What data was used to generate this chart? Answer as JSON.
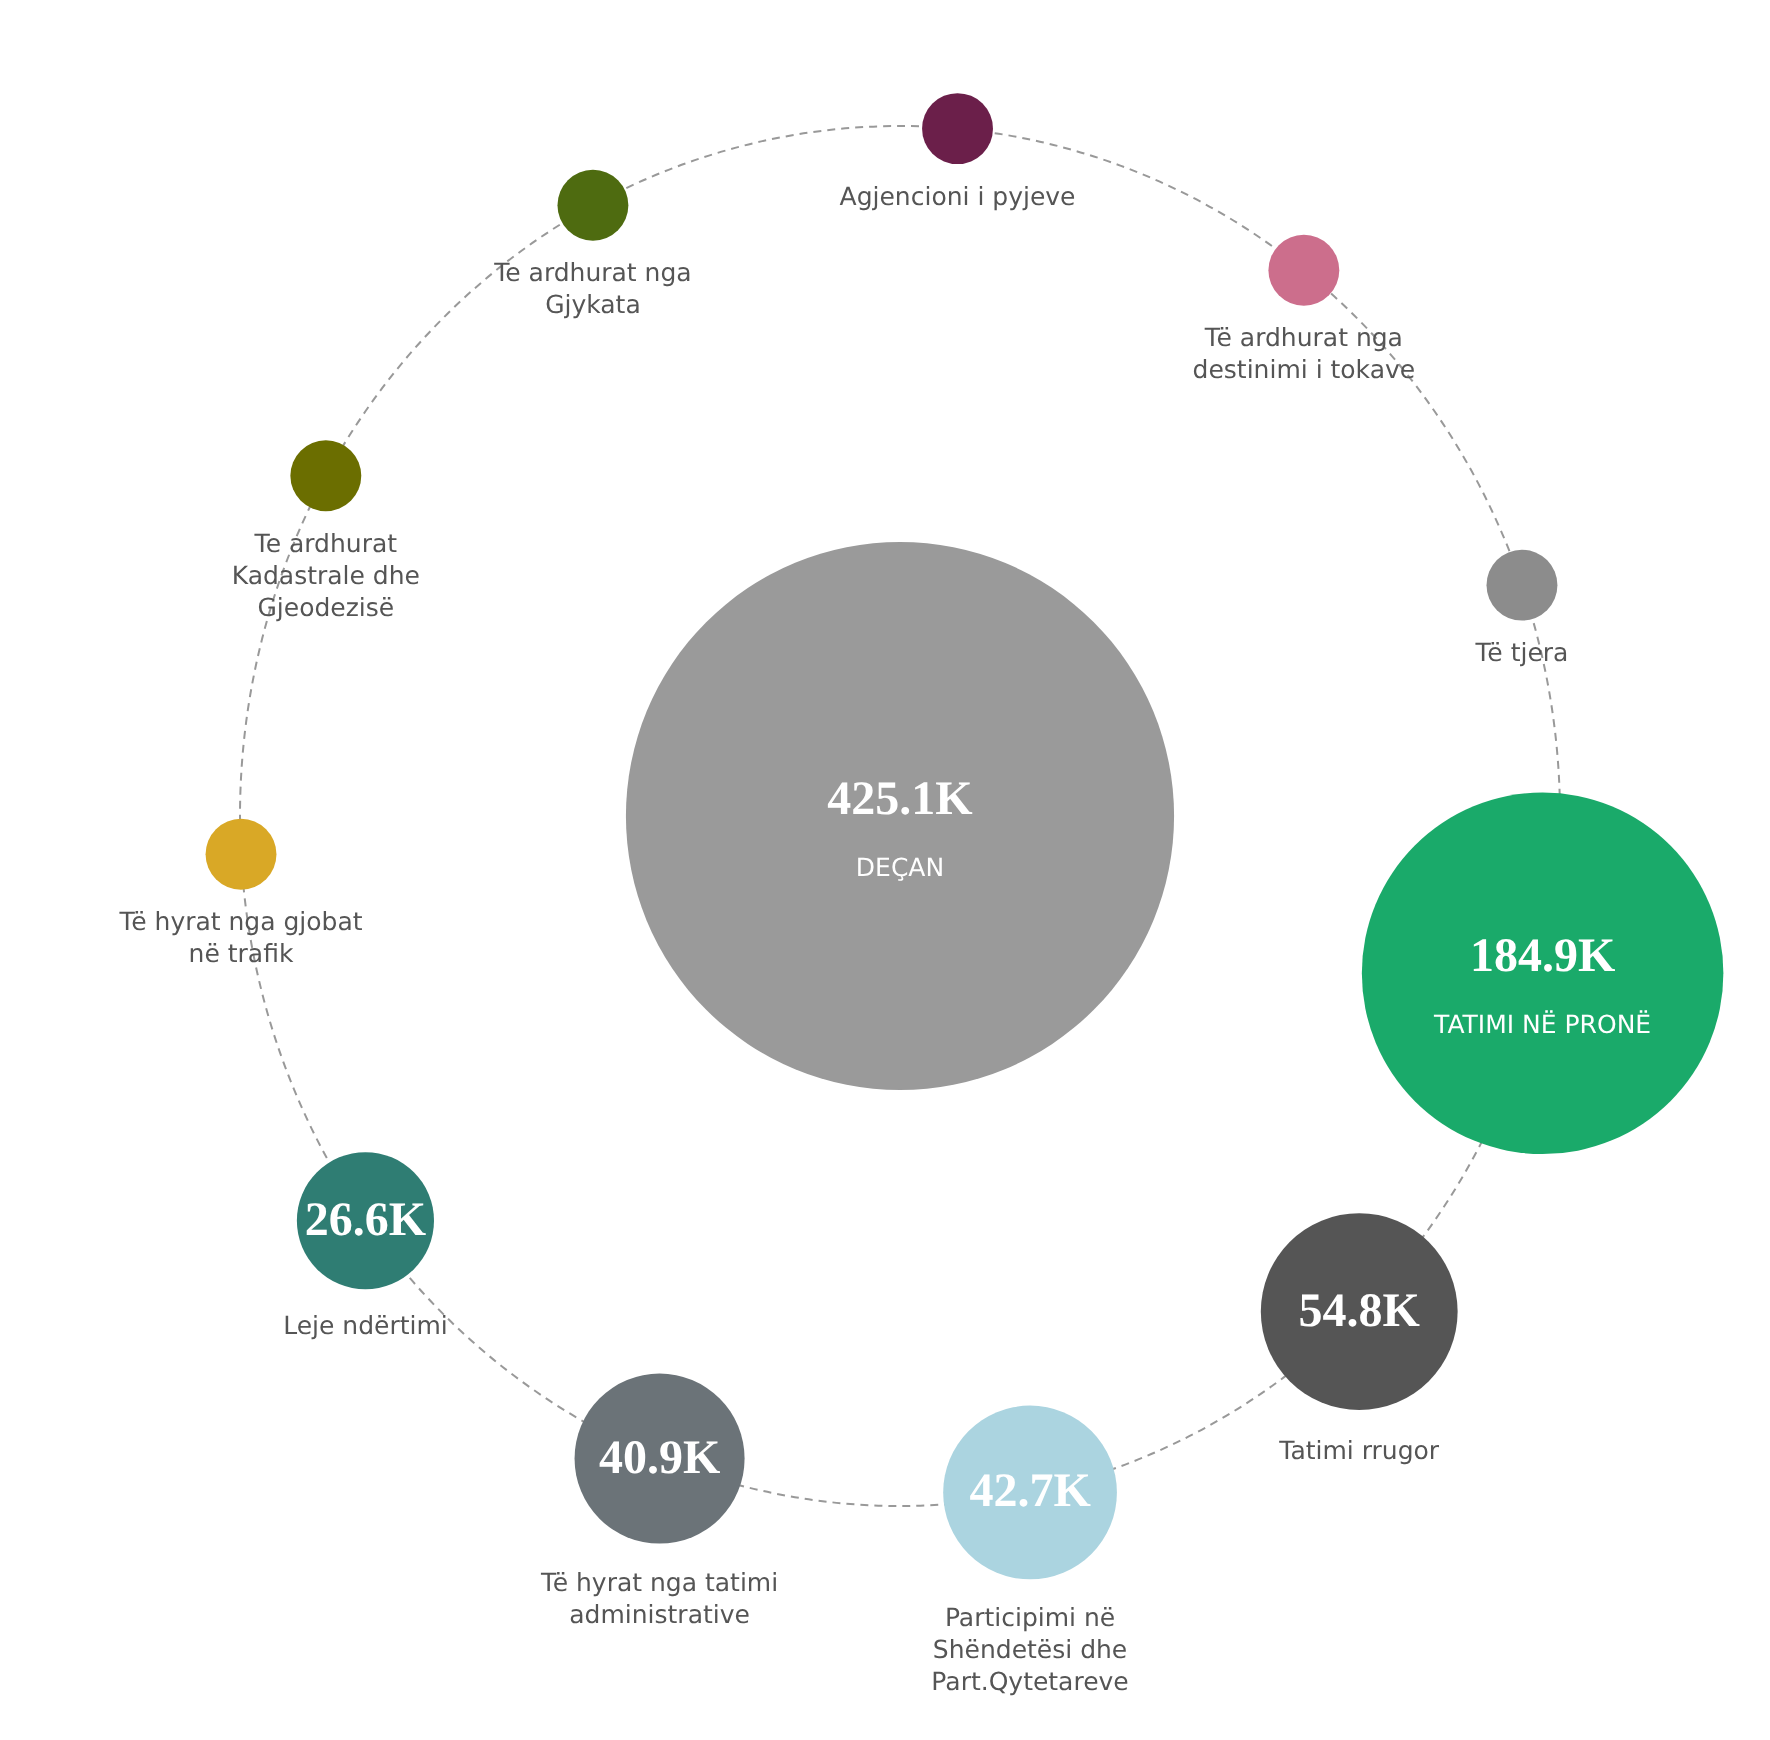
{
  "chart_data": {
    "type": "other",
    "categories": [
      "DEÇAN",
      "Agjencioni i pyjeve",
      "Të ardhurat nga destinimi i tokave",
      "Të tjera",
      "TATIMI NË PRONË",
      "Tatimi rrugor",
      "Participimi në Shëndetësi dhe Part.Qytetareve",
      "Të hyrat nga tatimi administrative",
      "Leje ndërtimi",
      "Të hyrat nga gjobat në trafik",
      "Te ardhurat Kadastrale dhe Gjeodezisë",
      "Te ardhurat nga Gjykata"
    ],
    "values": [
      425.1,
      null,
      null,
      null,
      184.9,
      54.8,
      42.7,
      40.9,
      26.6,
      null,
      null,
      null
    ],
    "value_labels": [
      "425.1K",
      null,
      null,
      null,
      "184.9K",
      "54.8K",
      "42.7K",
      "40.9K",
      "26.6K",
      null,
      null,
      null
    ],
    "colors": [
      "#9a9a9a",
      "#6b1f4a",
      "#cc6e8c",
      "#8c8c8c",
      "#1aaa6a",
      "#555555",
      "#abd4e0",
      "#6b7378",
      "#2f7d73",
      "#d9a826",
      "#6b6e00",
      "#4e6b10"
    ]
  }
}
